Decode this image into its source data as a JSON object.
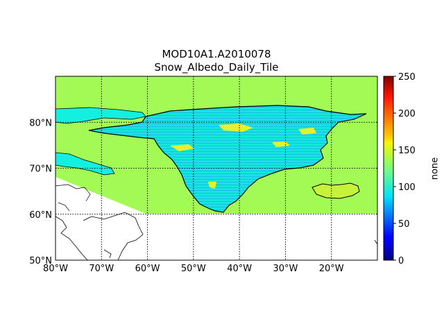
{
  "title_line1": "MOD10A1.A2010078",
  "title_line2": "Snow_Albedo_Daily_Tile",
  "map": {
    "projection": "equirectangular",
    "lon_range": [
      -80,
      -10
    ],
    "lat_range": [
      50,
      90
    ],
    "lon_ticks": [
      {
        "value": -80,
        "label": "80°W"
      },
      {
        "value": -70,
        "label": "70°W"
      },
      {
        "value": -60,
        "label": "60°W"
      },
      {
        "value": -50,
        "label": "50°W"
      },
      {
        "value": -40,
        "label": "40°W"
      },
      {
        "value": -30,
        "label": "30°W"
      },
      {
        "value": -20,
        "label": "20°W"
      }
    ],
    "lat_ticks": [
      {
        "value": 50,
        "label": "50°N"
      },
      {
        "value": 60,
        "label": "60°N"
      },
      {
        "value": 70,
        "label": "70°N"
      },
      {
        "value": 80,
        "label": "80°N"
      }
    ],
    "gridlines": "dotted",
    "data_extent_south_lat": 60,
    "background_fill_value": 150,
    "background_fill_color": "#a4fa54",
    "ice_sheet_color": "#13f0e0",
    "coastline_color": "#000000"
  },
  "colorbar": {
    "label": "none",
    "colormap": "jet",
    "min": 0,
    "max": 250,
    "ticks": [
      {
        "value": 0,
        "label": "0"
      },
      {
        "value": 50,
        "label": "50"
      },
      {
        "value": 100,
        "label": "100"
      },
      {
        "value": 150,
        "label": "150"
      },
      {
        "value": 200,
        "label": "200"
      },
      {
        "value": 250,
        "label": "250"
      }
    ]
  }
}
